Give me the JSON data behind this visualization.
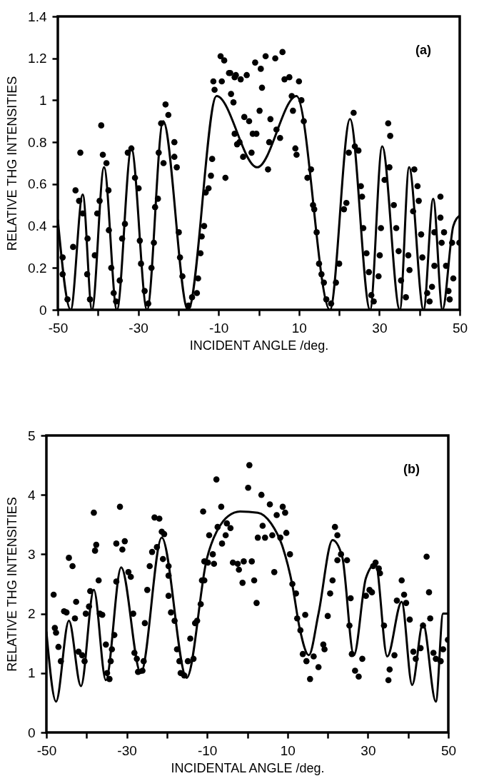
{
  "chart_data": [
    {
      "type": "scatter",
      "xlabel": "INCIDENT ANGLE /deg.",
      "ylabel": "RELATIVE THG INTENSITIES",
      "annotations": [
        "(a)"
      ],
      "xlim": [
        -50,
        50
      ],
      "ylim": [
        0,
        1.4
      ],
      "xticks": [
        -50,
        {
          "value": -40,
          "label": null
        },
        -30,
        {
          "value": -20,
          "label": null
        },
        -10,
        {
          "value": 0,
          "label": null
        },
        10,
        {
          "value": 20,
          "label": null
        },
        30,
        {
          "value": 40,
          "label": null
        },
        50
      ],
      "yticks": [
        0,
        0.2,
        0.4,
        0.6,
        0.8,
        1,
        1.2,
        1.4
      ],
      "series": [
        {
          "type": "scatter",
          "marker": "circle",
          "color": "#000000",
          "x": [
            -48.8,
            -48.8,
            -47.6,
            -46.2,
            -45.6,
            -44.4,
            -44.7,
            -43.8,
            -42.6,
            -42.7,
            -42.0,
            -40.8,
            -40.2,
            -39.6,
            -39.2,
            -38.8,
            -37.9,
            -37.4,
            -37.3,
            -36.7,
            -36.1,
            -35.5,
            -34.6,
            -34.0,
            -33.3,
            -32.6,
            -31.7,
            -30.8,
            -29.9,
            -29.6,
            -29.3,
            -28.4,
            -27.5,
            -26.7,
            -26.1,
            -25.8,
            -25.1,
            -24.9,
            -24.3,
            -23.2,
            -22.5,
            -23.7,
            -21.0,
            -21.0,
            -20.4,
            -19.9,
            -19.6,
            -19.0,
            -17.5,
            -16.6,
            -15.4,
            -15.1,
            -14.5,
            -14.2,
            -13.6,
            -13.2,
            -12.5,
            -11.9,
            -11.6,
            -11.3,
            -11.0,
            -9.5,
            -8.6,
            -9.2,
            -8.3,
            -7.4,
            -6.0,
            -6.9,
            -6.3,
            -6.0,
            -5.4,
            -7.1,
            -5.7,
            -4.5,
            -3.0,
            -4.8,
            -3.9,
            -3.6,
            -2.4,
            -1.8,
            -1.5,
            -0.6,
            -0.9,
            0.5,
            0.8,
            0.2,
            1.7,
            2.3,
            2.6,
            2.9,
            4.1,
            4.4,
            5.3,
            5.9,
            6.4,
            7.6,
            8.2,
            8.5,
            9.1,
            9.4,
            10.0,
            10.6,
            11.2,
            12.1,
            13.0,
            13.5,
            13.8,
            14.4,
            15.0,
            15.6,
            16.2,
            16.8,
            18.0,
            19.2,
            20.0,
            21.2,
            21.8,
            22.4,
            23.6,
            23.9,
            24.8,
            25.4,
            25.7,
            26.0,
            26.8,
            27.4,
            28.0,
            28.6,
            29.8,
            30.1,
            30.4,
            31.3,
            32.2,
            32.7,
            32.5,
            33.6,
            34.2,
            34.8,
            35.4,
            36.6,
            37.2,
            37.5,
            38.7,
            39.5,
            39.8,
            38.4,
            40.4,
            40.7,
            41.9,
            42.5,
            43.1,
            43.7,
            43.7,
            45.2,
            45.2,
            45.5,
            46.1,
            46.6,
            47.2,
            47.5,
            48.1,
            49.9,
            48.4
          ],
          "values": [
            0.25,
            0.17,
            0.05,
            0.3,
            0.57,
            0.75,
            0.52,
            0.46,
            0.34,
            0.17,
            0.05,
            0.26,
            0.46,
            0.52,
            0.88,
            0.74,
            0.7,
            0.57,
            0.38,
            0.2,
            0.08,
            0.04,
            0.14,
            0.34,
            0.41,
            0.75,
            0.77,
            0.63,
            0.58,
            0.33,
            0.22,
            0.09,
            0.03,
            0.2,
            0.32,
            0.49,
            0.53,
            0.75,
            0.89,
            0.98,
            0.93,
            0.7,
            0.8,
            0.73,
            0.68,
            0.37,
            0.25,
            0.16,
            0.02,
            0.06,
            0.08,
            0.15,
            0.27,
            0.35,
            0.4,
            0.56,
            0.58,
            0.64,
            0.72,
            1.09,
            1.05,
            1.21,
            1.19,
            1.09,
            0.63,
            1.13,
            1.11,
            1.03,
            0.99,
            0.84,
            0.79,
            1.13,
            1.12,
            1.1,
            1.12,
            0.8,
            0.73,
            0.92,
            0.9,
            0.75,
            0.84,
            0.84,
            1.18,
            1.15,
            1.06,
            0.95,
            1.21,
            0.67,
            0.8,
            0.91,
            1.2,
            0.86,
            0.82,
            1.23,
            1.1,
            1.11,
            1.02,
            0.95,
            0.77,
            0.74,
            1.09,
            1.0,
            0.9,
            0.63,
            0.67,
            0.5,
            0.48,
            0.37,
            0.22,
            0.17,
            0.13,
            0.05,
            0.03,
            0.13,
            0.22,
            0.48,
            0.51,
            0.75,
            0.94,
            0.78,
            0.76,
            0.59,
            0.54,
            0.39,
            0.27,
            0.18,
            0.07,
            0.04,
            0.16,
            0.26,
            0.39,
            0.62,
            0.89,
            0.83,
            0.68,
            0.5,
            0.39,
            0.28,
            0.14,
            0.06,
            0.26,
            0.19,
            0.67,
            0.59,
            0.52,
            0.47,
            0.36,
            0.25,
            0.08,
            0.04,
            0.11,
            0.21,
            0.37,
            0.54,
            0.44,
            0.32,
            0.37,
            0.21,
            0.09,
            0.05,
            0.32,
            0.32,
            0.15
          ]
        },
        {
          "type": "line",
          "color": "#000000",
          "x": [
            -50,
            -46.8,
            -43.8,
            -41.5,
            -38.5,
            -35.3,
            -31.7,
            -27.8,
            -23.8,
            -17.6,
            -10.5,
            -0.4,
            9.4,
            17.7,
            22.7,
            27.7,
            30.7,
            35.1,
            37.4,
            41.0,
            43.4,
            45.7,
            48.4,
            50
          ],
          "values": [
            0.43,
            0,
            0.55,
            0,
            0.68,
            0,
            0.77,
            0,
            0.9,
            0,
            1.02,
            0.68,
            1.02,
            0,
            0.91,
            0,
            0.78,
            0,
            0.68,
            0,
            0.53,
            0,
            0.4,
            0.45
          ]
        }
      ]
    },
    {
      "type": "scatter",
      "xlabel": "INCIDENTAL ANGLE /deg.",
      "ylabel": "RELATIVE THG INTENSITIES",
      "annotations": [
        "(b)"
      ],
      "xlim": [
        -50,
        50
      ],
      "ylim": [
        0,
        5
      ],
      "xticks": [
        -50,
        {
          "value": -40,
          "label": null
        },
        -30,
        {
          "value": -20,
          "label": null
        },
        -10,
        {
          "value": 0,
          "label": null
        },
        10,
        {
          "value": 20,
          "label": null
        },
        30,
        {
          "value": 40,
          "label": null
        },
        50
      ],
      "yticks": [
        0,
        1,
        2,
        3,
        4,
        5
      ],
      "series": [
        {
          "type": "scatter",
          "marker": "circle",
          "color": "#000000",
          "x": [
            -48.2,
            -47.9,
            -47.6,
            -47.0,
            -46.4,
            -45.6,
            -45.0,
            -44.4,
            -43.5,
            -42.9,
            -42.6,
            -42.0,
            -41.1,
            -40.5,
            -40.2,
            -39.4,
            -39.1,
            -38.2,
            -37.9,
            -37.6,
            -37.0,
            -36.7,
            -36.1,
            -35.2,
            -34.9,
            -34.3,
            -34.0,
            -33.7,
            -33.1,
            -32.6,
            -32.6,
            -31.7,
            -31.1,
            -30.5,
            -29.6,
            -29.0,
            -28.4,
            -28.1,
            -27.5,
            -27.2,
            -26.1,
            -25.8,
            -25.5,
            -24.9,
            -24.3,
            -23.7,
            -23.1,
            -21.9,
            -22.5,
            -21.3,
            -20.7,
            -21.0,
            -19.6,
            -19.6,
            -19.6,
            -19.0,
            -18.1,
            -17.5,
            -16.9,
            -16.6,
            -15.7,
            -14.8,
            -14.2,
            -13.4,
            -13.0,
            -12.5,
            -11.6,
            -11.3,
            -10.7,
            -10.7,
            -9.8,
            -9.5,
            -8.6,
            -8.3,
            -11.0,
            -7.7,
            -7.4,
            -6.5,
            -6.3,
            -5.4,
            -5.1,
            -4.2,
            -3.6,
            -2.4,
            -2.1,
            -1.2,
            -0.9,
            0.2,
            0.5,
            1.1,
            1.7,
            2.3,
            2.6,
            3.5,
            3.8,
            4.4,
            5.6,
            6.2,
            6.7,
            7.3,
            8.2,
            8.8,
            9.4,
            9.7,
            10.6,
            11.2,
            12.1,
            12.4,
            13.2,
            13.8,
            14.4,
            14.7,
            15.6,
            16.5,
            17.7,
            18.9,
            19.2,
            20.0,
            20.6,
            21.2,
            21.8,
            22.4,
            22.4,
            23.3,
            24.8,
            25.7,
            25.4,
            26.0,
            26.8,
            27.7,
            28.6,
            29.5,
            30.4,
            31.0,
            31.3,
            31.9,
            32.7,
            33.0,
            34.0,
            35.1,
            35.4,
            36.6,
            37.2,
            38.4,
            39.0,
            39.5,
            40.4,
            41.3,
            41.9,
            43.1,
            43.7,
            44.6,
            45.2,
            45.5,
            46.3,
            46.9,
            48.1,
            48.7,
            49.9
          ],
          "values": [
            2.32,
            1.76,
            1.68,
            1.44,
            1.2,
            2.04,
            2.02,
            2.94,
            2.8,
            1.92,
            2.2,
            1.36,
            1.3,
            1.2,
            2.0,
            2.12,
            2.38,
            3.7,
            3.06,
            3.16,
            2.56,
            2.0,
            1.98,
            1.48,
            1.0,
            0.9,
            1.2,
            1.4,
            1.64,
            2.54,
            3.18,
            3.8,
            3.08,
            3.22,
            2.7,
            2.62,
            2.0,
            1.34,
            1.24,
            1.02,
            1.04,
            1.2,
            1.84,
            2.4,
            2.8,
            3.04,
            3.62,
            3.6,
            3.12,
            3.38,
            3.34,
            2.92,
            2.8,
            2.64,
            2.3,
            2.02,
            1.88,
            1.4,
            1.2,
            1.0,
            0.96,
            1.2,
            1.58,
            1.24,
            1.84,
            1.88,
            2.16,
            2.56,
            2.56,
            2.88,
            2.86,
            3.32,
            3.0,
            2.84,
            3.72,
            4.26,
            3.46,
            3.8,
            3.18,
            3.32,
            3.52,
            3.44,
            2.86,
            2.84,
            2.74,
            2.52,
            2.88,
            4.12,
            4.5,
            2.88,
            2.56,
            2.18,
            3.28,
            4.0,
            3.48,
            3.28,
            3.84,
            3.32,
            2.7,
            3.66,
            3.28,
            3.8,
            3.7,
            3.36,
            3.0,
            2.5,
            2.34,
            1.92,
            1.72,
            1.32,
            1.98,
            1.2,
            0.9,
            1.28,
            1.1,
            1.48,
            1.4,
            1.96,
            2.34,
            2.56,
            3.46,
            3.32,
            2.9,
            3.0,
            2.9,
            2.26,
            1.8,
            1.32,
            1.04,
            0.94,
            1.24,
            2.3,
            2.4,
            2.36,
            2.8,
            2.86,
            2.76,
            2.68,
            1.8,
            0.88,
            1.06,
            1.3,
            2.22,
            2.56,
            2.32,
            2.18,
            1.9,
            1.36,
            1.24,
            1.42,
            1.8,
            2.96,
            2.36,
            1.92,
            1.34,
            1.24,
            1.2,
            1.4,
            1.56
          ]
        },
        {
          "type": "line",
          "color": "#000000",
          "x": [
            -50,
            -47.6,
            -44.4,
            -41.4,
            -38.2,
            -35.2,
            -31.4,
            -26.5,
            -21.3,
            -15.1,
            -10.1,
            -6.0,
            -4.8,
            -1.8,
            2.6,
            5.9,
            8.8,
            11.2,
            13.0,
            15.3,
            17.7,
            21.2,
            23.6,
            26.5,
            29.5,
            31.9,
            34.8,
            38.4,
            41.0,
            43.7,
            46.9,
            48.7,
            50
          ],
          "values": [
            1.7,
            0.52,
            1.88,
            0.78,
            2.4,
            0.88,
            2.78,
            1.0,
            3.28,
            0.92,
            2.92,
            3.56,
            3.64,
            3.72,
            3.7,
            3.52,
            3.12,
            2.48,
            1.76,
            1.3,
            2.0,
            3.24,
            2.96,
            1.3,
            2.6,
            2.84,
            1.28,
            2.2,
            0.8,
            1.84,
            0.52,
            2.0,
            2.0
          ]
        }
      ]
    }
  ]
}
